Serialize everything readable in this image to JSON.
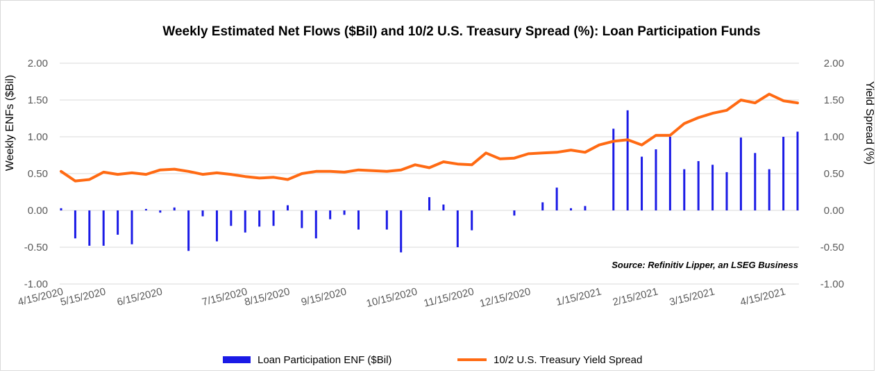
{
  "chart_data": {
    "type": "bar",
    "title": "Weekly Estimated Net Flows ($Bil) and 10/2 U.S. Treasury Spread (%): Loan Participation Funds",
    "ylabel": "Weekly ENFs ($Bil)",
    "y2label": "Yield Spread (%)",
    "ylim": [
      -1.0,
      2.0
    ],
    "y2lim": [
      -1.0,
      2.0
    ],
    "yticks": [
      "2.00",
      "1.50",
      "1.00",
      "0.50",
      "0.00",
      "-0.50",
      "-1.00"
    ],
    "y2ticks": [
      "2.00",
      "1.50",
      "1.00",
      "0.50",
      "0.00",
      "-0.50",
      "-1.00"
    ],
    "xtick_labels": [
      "4/15/2020",
      "5/15/2020",
      "6/15/2020",
      "7/15/2020",
      "8/15/2020",
      "9/15/2020",
      "10/15/2020",
      "11/15/2020",
      "12/15/2020",
      "1/15/2021",
      "2/15/2021",
      "3/15/2021",
      "4/15/2021"
    ],
    "grid": true,
    "legend_position": "bottom",
    "annotation": "Source: Refinitiv Lipper, an LSEG Business",
    "x": [
      "4/15/2020",
      "4/22/2020",
      "4/29/2020",
      "5/6/2020",
      "5/13/2020",
      "5/20/2020",
      "5/27/2020",
      "6/3/2020",
      "6/10/2020",
      "6/17/2020",
      "6/24/2020",
      "7/1/2020",
      "7/8/2020",
      "7/15/2020",
      "7/22/2020",
      "7/29/2020",
      "8/5/2020",
      "8/12/2020",
      "8/19/2020",
      "8/26/2020",
      "9/2/2020",
      "9/9/2020",
      "9/16/2020",
      "9/23/2020",
      "9/30/2020",
      "10/7/2020",
      "10/14/2020",
      "10/21/2020",
      "10/28/2020",
      "11/4/2020",
      "11/11/2020",
      "11/18/2020",
      "11/25/2020",
      "12/2/2020",
      "12/9/2020",
      "12/16/2020",
      "12/23/2020",
      "12/30/2020",
      "1/6/2021",
      "1/13/2021",
      "1/20/2021",
      "1/27/2021",
      "2/3/2021",
      "2/10/2021",
      "2/17/2021",
      "2/24/2021",
      "3/3/2021",
      "3/10/2021",
      "3/17/2021",
      "3/24/2021",
      "3/31/2021",
      "4/7/2021",
      "4/14/2021"
    ],
    "series": [
      {
        "name": "Loan Participation ENF ($Bil)",
        "type": "bar",
        "color": "#1a1ae6",
        "values": [
          0.03,
          -0.38,
          -0.48,
          -0.48,
          -0.33,
          -0.46,
          0.02,
          -0.03,
          0.04,
          -0.55,
          -0.08,
          -0.42,
          -0.21,
          -0.3,
          -0.22,
          -0.21,
          0.07,
          -0.24,
          -0.38,
          -0.12,
          -0.06,
          -0.26,
          0.0,
          -0.26,
          -0.57,
          0.0,
          0.18,
          0.08,
          -0.5,
          -0.27,
          0.0,
          0.0,
          -0.07,
          0.0,
          0.11,
          0.31,
          0.03,
          0.06,
          0.0,
          1.11,
          1.36,
          0.73,
          0.83,
          1.0,
          0.56,
          0.67,
          0.62,
          0.52,
          0.99,
          0.78,
          0.56,
          1.0,
          1.07
        ]
      },
      {
        "name": "10/2 U.S. Treasury Yield Spread",
        "type": "line",
        "color": "#ff6a13",
        "values": [
          0.53,
          0.4,
          0.42,
          0.52,
          0.49,
          0.51,
          0.49,
          0.55,
          0.56,
          0.53,
          0.49,
          0.51,
          0.49,
          0.46,
          0.44,
          0.45,
          0.42,
          0.5,
          0.53,
          0.53,
          0.52,
          0.55,
          0.54,
          0.53,
          0.55,
          0.62,
          0.58,
          0.66,
          0.63,
          0.62,
          0.78,
          0.7,
          0.71,
          0.77,
          0.78,
          0.79,
          0.82,
          0.79,
          0.89,
          0.94,
          0.96,
          0.89,
          1.02,
          1.02,
          1.18,
          1.26,
          1.32,
          1.36,
          1.5,
          1.46,
          1.58,
          1.49,
          1.46
        ]
      }
    ]
  }
}
